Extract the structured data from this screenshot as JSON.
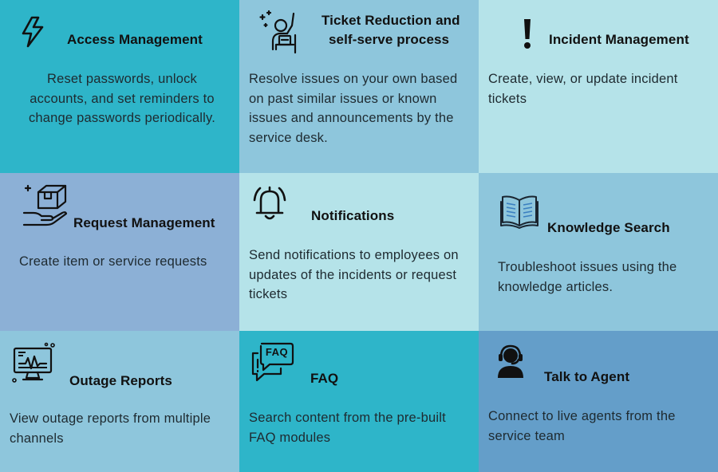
{
  "colors": {
    "teal": "#2eb5c9",
    "light_blue": "#8ec6dc",
    "pale_cyan": "#b5e3e9",
    "periwinkle": "#8cb0d6",
    "steel_blue": "#649ec9"
  },
  "cards": [
    {
      "title": "Access Management",
      "description": "Reset passwords, unlock accounts, and set reminders to change passwords periodically.",
      "icon": "lightning-icon"
    },
    {
      "title_line1": "Ticket Reduction and",
      "title_line2": "self-serve process",
      "description": "Resolve issues on your own based on past similar issues or known issues and announcements by the service desk.",
      "icon": "self-serve-person-icon"
    },
    {
      "title": "Incident Management",
      "description": "Create, view, or update incident tickets",
      "icon": "exclamation-icon"
    },
    {
      "title": "Request Management",
      "description": "Create item or service requests",
      "icon": "box-in-hand-icon"
    },
    {
      "title": "Notifications",
      "description": "Send notifications to employees on updates of the incidents or request tickets",
      "icon": "bell-icon"
    },
    {
      "title": "Knowledge Search",
      "description": "Troubleshoot issues using the knowledge articles.",
      "icon": "open-book-icon"
    },
    {
      "title": "Outage Reports",
      "description": "View outage reports from multiple channels",
      "icon": "monitor-pulse-icon"
    },
    {
      "title": "FAQ",
      "description": "Search content from the pre-built FAQ modules",
      "icon": "faq-chat-icon",
      "icon_text": "FAQ"
    },
    {
      "title": "Talk to Agent",
      "description": "Connect to live agents from the service team",
      "icon": "agent-headset-icon"
    }
  ]
}
